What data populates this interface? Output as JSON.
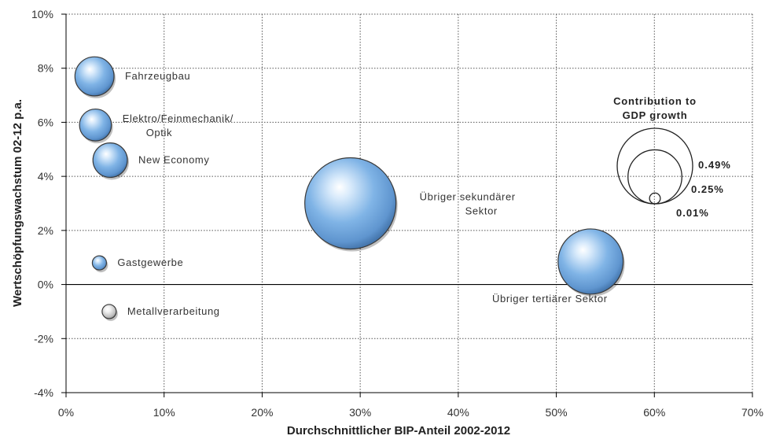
{
  "chart_data": {
    "type": "scatter",
    "subtype": "bubble",
    "xlabel": "Durchschnittlicher BIP-Anteil 2002-2012",
    "ylabel": "Wertschöpfungswachstum 02-12 p.a.",
    "xlim": [
      0,
      70
    ],
    "ylim": [
      -4,
      10
    ],
    "x_ticks": [
      "0%",
      "10%",
      "20%",
      "30%",
      "40%",
      "50%",
      "60%",
      "70%"
    ],
    "y_ticks": [
      "-4%",
      "-2%",
      "0%",
      "2%",
      "4%",
      "6%",
      "8%",
      "10%"
    ],
    "grid": "dotted",
    "points": [
      {
        "label": [
          "Fahrzeugbau"
        ],
        "x": 2.9,
        "y": 7.7,
        "contribution": 0.09,
        "color": "#7fb2e5"
      },
      {
        "label": [
          "Elektro/Feinmechanik/",
          "Optik"
        ],
        "x": 3.0,
        "y": 5.9,
        "contribution": 0.06,
        "color": "#7fb2e5"
      },
      {
        "label": [
          "New Economy"
        ],
        "x": 4.5,
        "y": 4.6,
        "contribution": 0.07,
        "color": "#7fb2e5"
      },
      {
        "label": [
          "Übriger sekundärer",
          "Sektor"
        ],
        "x": 29.0,
        "y": 3.0,
        "contribution": 0.49,
        "color": "#7fb2e5"
      },
      {
        "label": [
          "Gastgewerbe"
        ],
        "x": 3.4,
        "y": 0.8,
        "contribution": 0.01,
        "color": "#7fb2e5"
      },
      {
        "label": [
          "Metallverarbeitung"
        ],
        "x": 4.4,
        "y": -1.0,
        "contribution": 0.01,
        "color": "#cfcfcf"
      },
      {
        "label": [
          "Übriger tertiärer Sektor"
        ],
        "x": 53.5,
        "y": 0.85,
        "contribution": 0.25,
        "color": "#7fb2e5"
      }
    ],
    "legend": {
      "title": [
        "Contribution to",
        "GDP growth"
      ],
      "placement": "right",
      "entries": [
        {
          "label": "0.49%",
          "value": 0.49
        },
        {
          "label": "0.25%",
          "value": 0.25
        },
        {
          "label": "0.01%",
          "value": 0.01
        }
      ]
    }
  }
}
